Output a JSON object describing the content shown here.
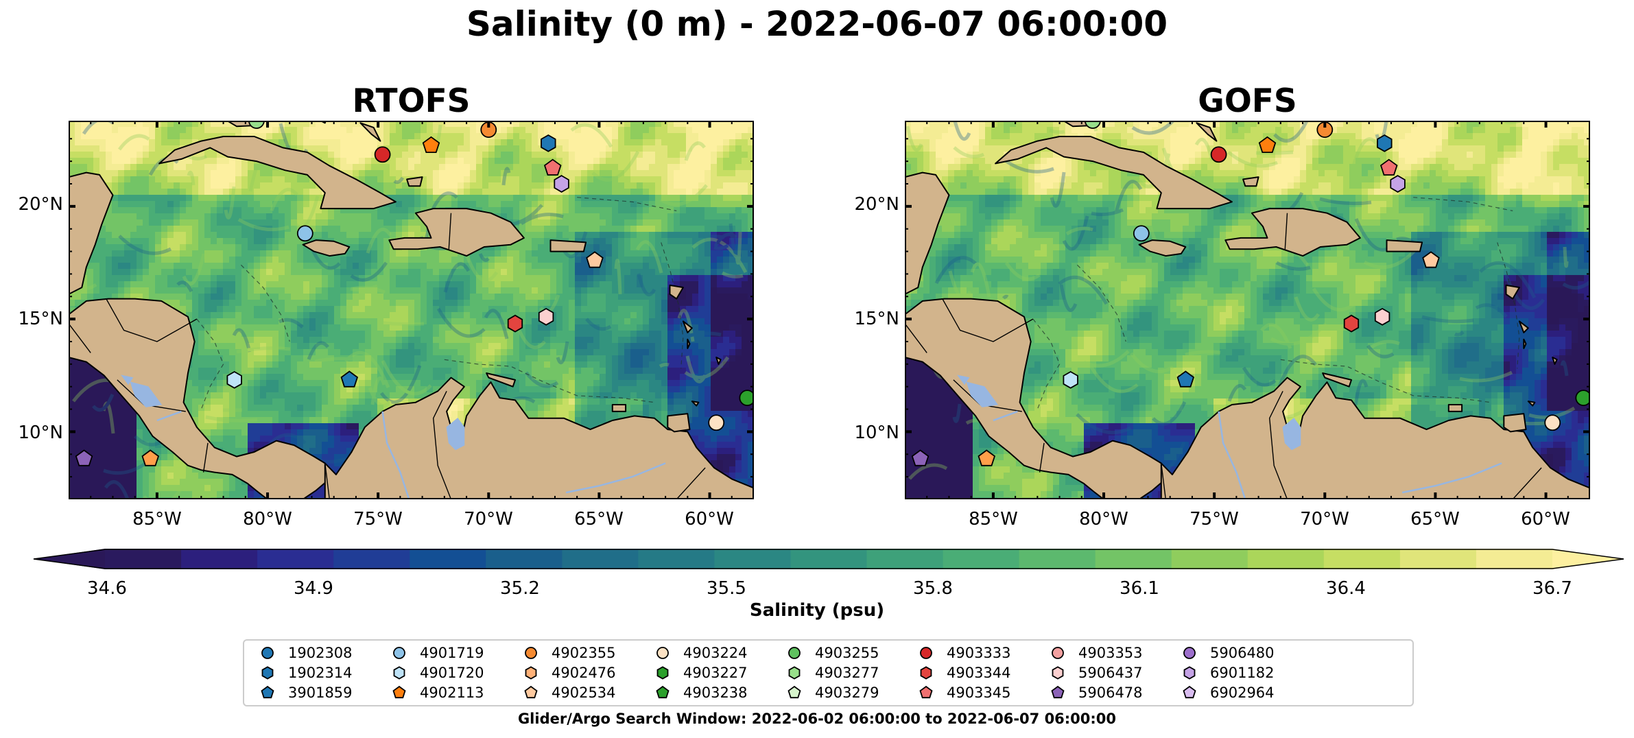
{
  "figure": {
    "title": "Salinity (0 m) - 2022-06-07 06:00:00",
    "panels": [
      {
        "title": "RTOFS"
      },
      {
        "title": "GOFS"
      }
    ],
    "y_ticks": [
      "20°N",
      "15°N",
      "10°N"
    ],
    "x_ticks": [
      "85°W",
      "80°W",
      "75°W",
      "70°W",
      "65°W",
      "60°W"
    ],
    "extent": {
      "lon_min": -89,
      "lon_max": -58,
      "lat_min": 7,
      "lat_max": 23.8
    }
  },
  "colorbar": {
    "label": "Salinity (psu)",
    "ticks": [
      "34.6",
      "34.9",
      "35.2",
      "35.5",
      "35.8",
      "36.1",
      "36.4",
      "36.7"
    ],
    "min": 34.6,
    "max": 36.7,
    "colors": [
      "#2a1a5e",
      "#2c1f7d",
      "#2a2d92",
      "#203d96",
      "#134f94",
      "#1a5f8c",
      "#206e89",
      "#257a86",
      "#2b8783",
      "#33947e",
      "#3ea17a",
      "#4aad76",
      "#5cb96e",
      "#73c466",
      "#8fcd5d",
      "#abd65a",
      "#c6de63",
      "#e0e57a",
      "#f4ec94"
    ],
    "extend_low_color": "#2a1858",
    "extend_high_color": "#fdf0a0"
  },
  "legend": {
    "items": [
      {
        "id": "1902308",
        "marker": "circle",
        "color": "#1f77b4"
      },
      {
        "id": "1902314",
        "marker": "hexagon",
        "color": "#1f77b4"
      },
      {
        "id": "3901859",
        "marker": "pentagon",
        "color": "#1f77b4"
      },
      {
        "id": "4901719",
        "marker": "circle",
        "color": "#8ec3e8"
      },
      {
        "id": "4901720",
        "marker": "hexagon",
        "color": "#bfe3f7"
      },
      {
        "id": "4902113",
        "marker": "pentagon",
        "color": "#ff7f0e"
      },
      {
        "id": "4902355",
        "marker": "circle",
        "color": "#f58a32"
      },
      {
        "id": "4902476",
        "marker": "hexagon",
        "color": "#ffb178"
      },
      {
        "id": "4902534",
        "marker": "pentagon",
        "color": "#ffcaa0"
      },
      {
        "id": "4903224",
        "marker": "circle",
        "color": "#fde2c4"
      },
      {
        "id": "4903227",
        "marker": "hexagon",
        "color": "#2ca02c"
      },
      {
        "id": "4903238",
        "marker": "pentagon",
        "color": "#2ca02c"
      },
      {
        "id": "4903255",
        "marker": "circle",
        "color": "#5fc15f"
      },
      {
        "id": "4903277",
        "marker": "hexagon",
        "color": "#98df8a"
      },
      {
        "id": "4903279",
        "marker": "pentagon",
        "color": "#d7f5cc"
      },
      {
        "id": "4903333",
        "marker": "circle",
        "color": "#d62728"
      },
      {
        "id": "4903344",
        "marker": "hexagon",
        "color": "#e3443f"
      },
      {
        "id": "4903345",
        "marker": "pentagon",
        "color": "#f07070"
      },
      {
        "id": "4903353",
        "marker": "circle",
        "color": "#f3a0a0"
      },
      {
        "id": "5906437",
        "marker": "hexagon",
        "color": "#fcd0d0"
      },
      {
        "id": "5906478",
        "marker": "pentagon",
        "color": "#8c63b8"
      },
      {
        "id": "5906480",
        "marker": "circle",
        "color": "#9d6fcc"
      },
      {
        "id": "6901182",
        "marker": "hexagon",
        "color": "#c5a3e6"
      },
      {
        "id": "6902964",
        "marker": "pentagon",
        "color": "#d9bdf0"
      }
    ],
    "search_window": "Glider/Argo Search Window: 2022-06-02 06:00:00 to 2022-06-07 06:00:00"
  },
  "map_markers": [
    {
      "lon": -80.5,
      "lat": 23.8,
      "marker": "circle",
      "color": "#98df8a"
    },
    {
      "lon": -70.0,
      "lat": 23.4,
      "marker": "circle",
      "color": "#f58a32"
    },
    {
      "lon": -67.3,
      "lat": 22.8,
      "marker": "hexagon",
      "color": "#1f77b4"
    },
    {
      "lon": -72.6,
      "lat": 22.7,
      "marker": "pentagon",
      "color": "#ff7f0e"
    },
    {
      "lon": -74.8,
      "lat": 22.3,
      "marker": "circle",
      "color": "#d62728"
    },
    {
      "lon": -67.1,
      "lat": 21.7,
      "marker": "pentagon",
      "color": "#f07070"
    },
    {
      "lon": -66.7,
      "lat": 21.0,
      "marker": "hexagon",
      "color": "#c5a3e6"
    },
    {
      "lon": -78.3,
      "lat": 18.8,
      "marker": "circle",
      "color": "#8ec3e8"
    },
    {
      "lon": -65.2,
      "lat": 17.6,
      "marker": "pentagon",
      "color": "#ffcaa0"
    },
    {
      "lon": -67.4,
      "lat": 15.1,
      "marker": "hexagon",
      "color": "#fcd0d0"
    },
    {
      "lon": -68.8,
      "lat": 14.8,
      "marker": "hexagon",
      "color": "#e3443f"
    },
    {
      "lon": -81.5,
      "lat": 12.3,
      "marker": "hexagon",
      "color": "#bfe3f7"
    },
    {
      "lon": -76.3,
      "lat": 12.3,
      "marker": "pentagon",
      "color": "#1f77b4"
    },
    {
      "lon": -58.3,
      "lat": 11.5,
      "marker": "circle",
      "color": "#2ca02c"
    },
    {
      "lon": -59.7,
      "lat": 10.4,
      "marker": "circle",
      "color": "#fde2c4"
    },
    {
      "lon": -85.3,
      "lat": 8.8,
      "marker": "pentagon",
      "color": "#ff9f4a"
    },
    {
      "lon": -88.3,
      "lat": 8.8,
      "marker": "pentagon",
      "color": "#8c63b8"
    }
  ]
}
